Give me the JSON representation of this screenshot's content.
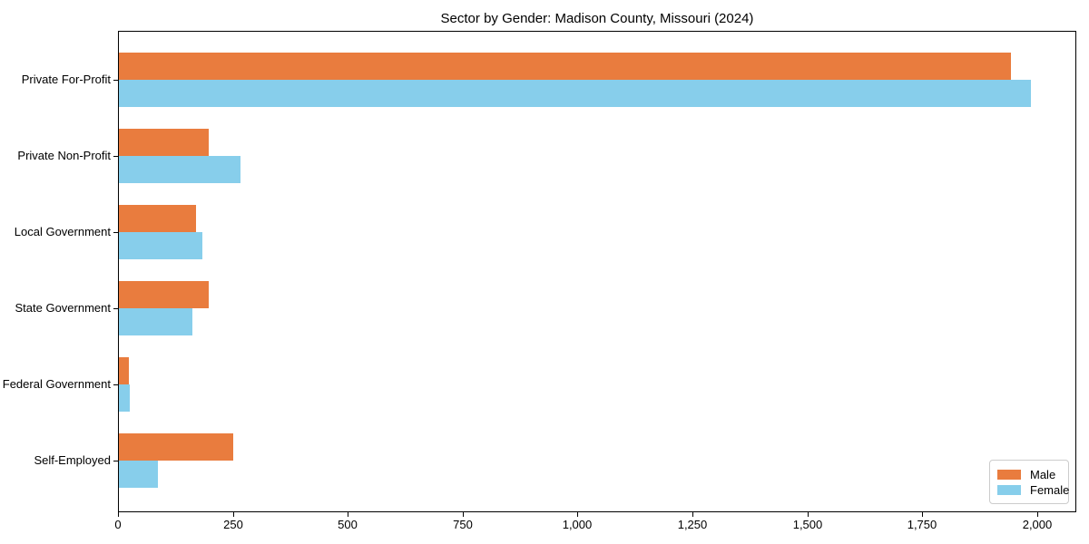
{
  "chart_data": {
    "type": "bar",
    "orientation": "horizontal",
    "title": "Sector by Gender: Madison County, Missouri (2024)",
    "categories": [
      "Private For-Profit",
      "Private Non-Profit",
      "Local Government",
      "State Government",
      "Federal Government",
      "Self-Employed"
    ],
    "series": [
      {
        "name": "Male",
        "color": "#e97c3e",
        "values": [
          1940,
          195,
          168,
          195,
          22,
          248
        ]
      },
      {
        "name": "Female",
        "color": "#87ceeb",
        "values": [
          1985,
          265,
          181,
          160,
          24,
          85
        ]
      }
    ],
    "xlabel": "",
    "ylabel": "",
    "xlim": [
      0,
      2085
    ],
    "xticks": [
      0,
      250,
      500,
      750,
      1000,
      1250,
      1500,
      1750,
      2000
    ],
    "xtick_labels": [
      "0",
      "250",
      "500",
      "750",
      "1,000",
      "1,250",
      "1,500",
      "1,750",
      "2,000"
    ],
    "grid": false,
    "legend_position": "lower-right",
    "background_color": "#ffffff",
    "spine_color": "#000000"
  }
}
